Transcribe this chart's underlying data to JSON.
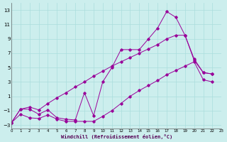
{
  "xlabel": "Windchill (Refroidissement éolien,°C)",
  "xlim": [
    0,
    23
  ],
  "ylim": [
    -3.5,
    14.0
  ],
  "yticks": [
    -3,
    -1,
    1,
    3,
    5,
    7,
    9,
    11,
    13
  ],
  "xticks": [
    0,
    1,
    2,
    3,
    4,
    5,
    6,
    7,
    8,
    9,
    10,
    11,
    12,
    13,
    14,
    15,
    16,
    17,
    18,
    19,
    20,
    21,
    22,
    23
  ],
  "background_color": "#cceeed",
  "grid_color": "#aadddd",
  "line_color": "#990099",
  "line1_x": [
    0,
    1,
    2,
    3,
    4,
    5,
    6,
    7,
    8,
    9,
    10,
    11,
    12,
    13,
    14,
    15,
    16,
    17,
    18,
    19,
    20,
    21,
    22
  ],
  "line1_y": [
    -2.7,
    -0.8,
    -0.8,
    -1.5,
    -0.9,
    -2.0,
    -2.2,
    -2.3,
    1.5,
    -1.7,
    3.0,
    5.0,
    7.5,
    7.5,
    7.5,
    9.0,
    10.5,
    12.8,
    12.0,
    9.5,
    6.0,
    4.3,
    4.1
  ],
  "line2_x": [
    0,
    1,
    2,
    3,
    4,
    5,
    6,
    7,
    8,
    9,
    10,
    11,
    12,
    13,
    14,
    15,
    16,
    17,
    18,
    19,
    20,
    21,
    22
  ],
  "line2_y": [
    -2.7,
    -0.8,
    -0.5,
    -0.9,
    0.0,
    0.8,
    1.5,
    2.3,
    3.0,
    3.8,
    4.5,
    5.2,
    5.8,
    6.4,
    7.0,
    7.6,
    8.2,
    9.0,
    9.5,
    9.5,
    6.2,
    4.3,
    4.1
  ],
  "line3_x": [
    0,
    1,
    2,
    3,
    4,
    5,
    6,
    7,
    8,
    9,
    10,
    11,
    12,
    13,
    14,
    15,
    16,
    17,
    18,
    19,
    20,
    21,
    22
  ],
  "line3_y": [
    -2.7,
    -1.5,
    -2.0,
    -2.1,
    -1.6,
    -2.2,
    -2.5,
    -2.5,
    -2.5,
    -2.5,
    -1.8,
    -1.0,
    0.0,
    1.0,
    1.8,
    2.5,
    3.2,
    4.0,
    4.6,
    5.2,
    5.8,
    3.3,
    3.0
  ]
}
